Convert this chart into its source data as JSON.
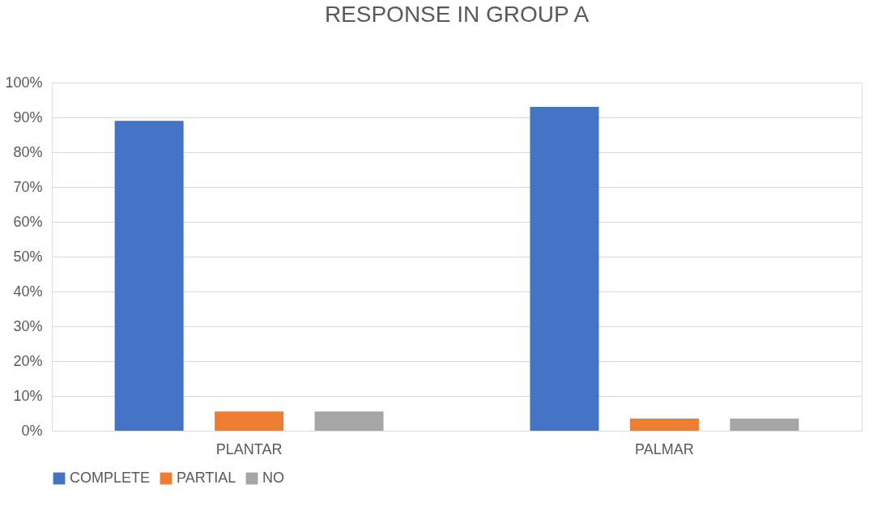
{
  "chart_data": {
    "type": "bar",
    "title": "RESPONSE IN GROUP A",
    "categories": [
      "PLANTAR",
      "PALMAR"
    ],
    "series": [
      {
        "name": "COMPLETE",
        "color": "#4472c4",
        "values": [
          89,
          93
        ]
      },
      {
        "name": "PARTIAL",
        "color": "#ed7d31",
        "values": [
          5.5,
          3.5
        ]
      },
      {
        "name": "NO",
        "color": "#a5a5a5",
        "values": [
          5.5,
          3.5
        ]
      }
    ],
    "ylim": [
      0,
      100
    ],
    "yticks": [
      {
        "value": 0,
        "label": "0%"
      },
      {
        "value": 10,
        "label": "10%"
      },
      {
        "value": 20,
        "label": "20%"
      },
      {
        "value": 30,
        "label": "30%"
      },
      {
        "value": 40,
        "label": "40%"
      },
      {
        "value": 50,
        "label": "50%"
      },
      {
        "value": 60,
        "label": "60%"
      },
      {
        "value": 70,
        "label": "70%"
      },
      {
        "value": 80,
        "label": "80%"
      },
      {
        "value": 90,
        "label": "90%"
      },
      {
        "value": 100,
        "label": "100%"
      }
    ],
    "grid": "y",
    "legend": "bottom"
  }
}
